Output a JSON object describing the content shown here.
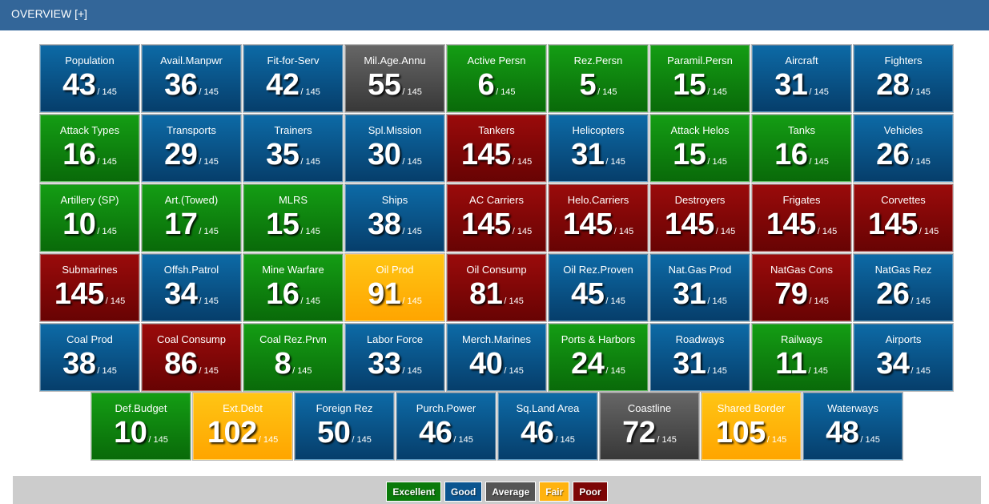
{
  "header": {
    "title": "OVERVIEW [+]"
  },
  "colors": {
    "excellent": "#0a7a0a",
    "good": "#0b5590",
    "average": "#555555",
    "fair": "#ffb30f",
    "poor": "#7d0606",
    "header": "#336699"
  },
  "tiles": [
    {
      "label": "Population",
      "value": "43",
      "total": "/ 145",
      "rating": "g"
    },
    {
      "label": "Avail.Manpwr",
      "value": "36",
      "total": "/ 145",
      "rating": "g"
    },
    {
      "label": "Fit-for-Serv",
      "value": "42",
      "total": "/ 145",
      "rating": "g"
    },
    {
      "label": "Mil.Age.Annu",
      "value": "55",
      "total": "/ 145",
      "rating": "a"
    },
    {
      "label": "Active Persn",
      "value": "6",
      "total": "/ 145",
      "rating": "e"
    },
    {
      "label": "Rez.Persn",
      "value": "5",
      "total": "/ 145",
      "rating": "e"
    },
    {
      "label": "Paramil.Persn",
      "value": "15",
      "total": "/ 145",
      "rating": "e"
    },
    {
      "label": "Aircraft",
      "value": "31",
      "total": "/ 145",
      "rating": "g"
    },
    {
      "label": "Fighters",
      "value": "28",
      "total": "/ 145",
      "rating": "g"
    },
    {
      "label": "Attack Types",
      "value": "16",
      "total": "/ 145",
      "rating": "e"
    },
    {
      "label": "Transports",
      "value": "29",
      "total": "/ 145",
      "rating": "g"
    },
    {
      "label": "Trainers",
      "value": "35",
      "total": "/ 145",
      "rating": "g"
    },
    {
      "label": "Spl.Mission",
      "value": "30",
      "total": "/ 145",
      "rating": "g"
    },
    {
      "label": "Tankers",
      "value": "145",
      "total": "/ 145",
      "rating": "p"
    },
    {
      "label": "Helicopters",
      "value": "31",
      "total": "/ 145",
      "rating": "g"
    },
    {
      "label": "Attack Helos",
      "value": "15",
      "total": "/ 145",
      "rating": "e"
    },
    {
      "label": "Tanks",
      "value": "16",
      "total": "/ 145",
      "rating": "e"
    },
    {
      "label": "Vehicles",
      "value": "26",
      "total": "/ 145",
      "rating": "g"
    },
    {
      "label": "Artillery (SP)",
      "value": "10",
      "total": "/ 145",
      "rating": "e"
    },
    {
      "label": "Art.(Towed)",
      "value": "17",
      "total": "/ 145",
      "rating": "e"
    },
    {
      "label": "MLRS",
      "value": "15",
      "total": "/ 145",
      "rating": "e"
    },
    {
      "label": "Ships",
      "value": "38",
      "total": "/ 145",
      "rating": "g"
    },
    {
      "label": "AC Carriers",
      "value": "145",
      "total": "/ 145",
      "rating": "p"
    },
    {
      "label": "Helo.Carriers",
      "value": "145",
      "total": "/ 145",
      "rating": "p"
    },
    {
      "label": "Destroyers",
      "value": "145",
      "total": "/ 145",
      "rating": "p"
    },
    {
      "label": "Frigates",
      "value": "145",
      "total": "/ 145",
      "rating": "p"
    },
    {
      "label": "Corvettes",
      "value": "145",
      "total": "/ 145",
      "rating": "p"
    },
    {
      "label": "Submarines",
      "value": "145",
      "total": "/ 145",
      "rating": "p"
    },
    {
      "label": "Offsh.Patrol",
      "value": "34",
      "total": "/ 145",
      "rating": "g"
    },
    {
      "label": "Mine Warfare",
      "value": "16",
      "total": "/ 145",
      "rating": "e"
    },
    {
      "label": "Oil Prod",
      "value": "91",
      "total": "/ 145",
      "rating": "f"
    },
    {
      "label": "Oil Consump",
      "value": "81",
      "total": "/ 145",
      "rating": "p"
    },
    {
      "label": "Oil Rez.Proven",
      "value": "45",
      "total": "/ 145",
      "rating": "g"
    },
    {
      "label": "Nat.Gas Prod",
      "value": "31",
      "total": "/ 145",
      "rating": "g"
    },
    {
      "label": "NatGas Cons",
      "value": "79",
      "total": "/ 145",
      "rating": "p"
    },
    {
      "label": "NatGas Rez",
      "value": "26",
      "total": "/ 145",
      "rating": "g"
    },
    {
      "label": "Coal Prod",
      "value": "38",
      "total": "/ 145",
      "rating": "g"
    },
    {
      "label": "Coal Consump",
      "value": "86",
      "total": "/ 145",
      "rating": "p"
    },
    {
      "label": "Coal Rez.Prvn",
      "value": "8",
      "total": "/ 145",
      "rating": "e"
    },
    {
      "label": "Labor Force",
      "value": "33",
      "total": "/ 145",
      "rating": "g"
    },
    {
      "label": "Merch.Marines",
      "value": "40",
      "total": "/ 145",
      "rating": "g"
    },
    {
      "label": "Ports & Harbors",
      "value": "24",
      "total": "/ 145",
      "rating": "e"
    },
    {
      "label": "Roadways",
      "value": "31",
      "total": "/ 145",
      "rating": "g"
    },
    {
      "label": "Railways",
      "value": "11",
      "total": "/ 145",
      "rating": "e"
    },
    {
      "label": "Airports",
      "value": "34",
      "total": "/ 145",
      "rating": "g"
    }
  ],
  "bottom_tiles": [
    {
      "label": "Def.Budget",
      "value": "10",
      "total": "/ 145",
      "rating": "e"
    },
    {
      "label": "Ext.Debt",
      "value": "102",
      "total": "/ 145",
      "rating": "f"
    },
    {
      "label": "Foreign Rez",
      "value": "50",
      "total": "/ 145",
      "rating": "g"
    },
    {
      "label": "Purch.Power",
      "value": "46",
      "total": "/ 145",
      "rating": "g"
    },
    {
      "label": "Sq.Land Area",
      "value": "46",
      "total": "/ 145",
      "rating": "g"
    },
    {
      "label": "Coastline",
      "value": "72",
      "total": "/ 145",
      "rating": "a"
    },
    {
      "label": "Shared Border",
      "value": "105",
      "total": "/ 145",
      "rating": "f"
    },
    {
      "label": "Waterways",
      "value": "48",
      "total": "/ 145",
      "rating": "g"
    }
  ],
  "legend": [
    {
      "label": "Excellent",
      "rating": "e"
    },
    {
      "label": "Good",
      "rating": "g"
    },
    {
      "label": "Average",
      "rating": "a"
    },
    {
      "label": "Fair",
      "rating": "f"
    },
    {
      "label": "Poor",
      "rating": "p"
    }
  ]
}
